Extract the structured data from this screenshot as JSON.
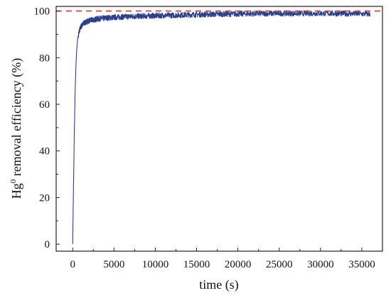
{
  "chart_data": {
    "type": "line",
    "xlabel": "time (s)",
    "ylabel": {
      "prefix": "Hg",
      "superscript": "0",
      "suffix": " removal efficiency (%)"
    },
    "xlim": [
      -2000,
      37500
    ],
    "ylim": [
      -3,
      102
    ],
    "x_ticks": [
      0,
      5000,
      10000,
      15000,
      20000,
      25000,
      30000,
      35000
    ],
    "x_tick_labels": [
      "0",
      "5000",
      "10000",
      "15000",
      "20000",
      "25000",
      "30000",
      "35000"
    ],
    "y_ticks": [
      0,
      20,
      40,
      60,
      80,
      100
    ],
    "y_tick_labels": [
      "0",
      "20",
      "40",
      "60",
      "80",
      "100"
    ],
    "grid": false,
    "reference_line": {
      "y": 100,
      "style": "dashed",
      "color": "#e0392b"
    },
    "series": [
      {
        "color": "#2b3f8c",
        "noise_band": 1.2,
        "points": [
          [
            0,
            0
          ],
          [
            100,
            25
          ],
          [
            200,
            48
          ],
          [
            300,
            66
          ],
          [
            400,
            77
          ],
          [
            500,
            84
          ],
          [
            600,
            88
          ],
          [
            800,
            91.5
          ],
          [
            1000,
            93.3
          ],
          [
            1300,
            94.6
          ],
          [
            1600,
            95.3
          ],
          [
            2000,
            95.9
          ],
          [
            3000,
            96.6
          ],
          [
            4000,
            97.0
          ],
          [
            5000,
            97.3
          ],
          [
            7000,
            97.7
          ],
          [
            10000,
            98.0
          ],
          [
            13000,
            98.3
          ],
          [
            15000,
            98.5
          ],
          [
            20000,
            98.8
          ],
          [
            25000,
            99.0
          ],
          [
            30000,
            99.0
          ],
          [
            33000,
            98.9
          ],
          [
            36000,
            98.7
          ]
        ]
      }
    ]
  }
}
